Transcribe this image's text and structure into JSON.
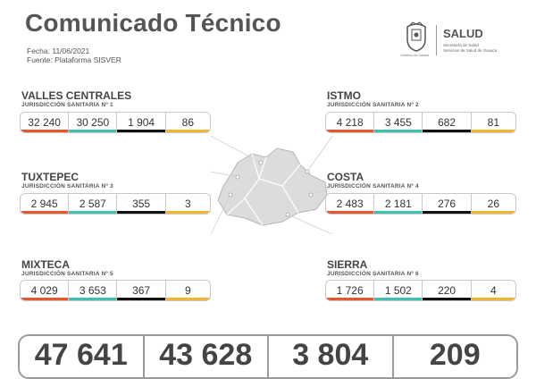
{
  "header": {
    "title": "Comunicado Técnico",
    "fecha": "Fecha: 11/06/2021",
    "fuente": "Fuente: Plataforma SISVER"
  },
  "logo": {
    "seal_caption": "Gobierno de Oaxaca",
    "brand": "SALUD",
    "line1": "Secretaría de Salud",
    "line2": "Servicios de Salud de Oaxaca"
  },
  "colors": {
    "col1": "#e8562e",
    "col2": "#3fc1b1",
    "col3": "#111111",
    "col4": "#f2b52f"
  },
  "regions": [
    {
      "name": "VALLES CENTRALES",
      "jurisdiccion": "JURISDICCIÓN SANITARIA Nº 1",
      "values": [
        "32 240",
        "30 250",
        "1 904",
        "86"
      ]
    },
    {
      "name": "ISTMO",
      "jurisdiccion": "JURISDICCIÓN SANITARIA Nº 2",
      "values": [
        "4 218",
        "3 455",
        "682",
        "81"
      ]
    },
    {
      "name": "TUXTEPEC",
      "jurisdiccion": "JURISDICCIÓN SANITARIA Nº 3",
      "values": [
        "2 945",
        "2 587",
        "355",
        "3"
      ]
    },
    {
      "name": "COSTA",
      "jurisdiccion": "JURISDICCIÓN SANITARIA Nº 4",
      "values": [
        "2 483",
        "2 181",
        "276",
        "26"
      ]
    },
    {
      "name": "MIXTECA",
      "jurisdiccion": "JURISDICCIÓN SANITARIA Nº 5",
      "values": [
        "4 029",
        "3 653",
        "367",
        "9"
      ]
    },
    {
      "name": "SIERRA",
      "jurisdiccion": "JURISDICCIÓN SANITARIA Nº 6",
      "values": [
        "1 726",
        "1 502",
        "220",
        "4"
      ]
    }
  ],
  "totals": [
    "47 641",
    "43 628",
    "3 804",
    "209"
  ]
}
